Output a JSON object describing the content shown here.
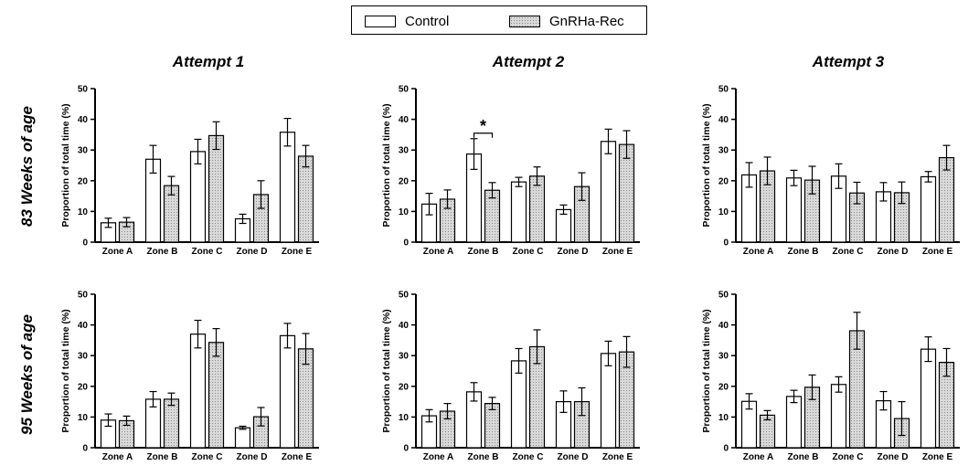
{
  "legend": {
    "control_label": "Control",
    "treated_label": "GnRHa-Rec"
  },
  "column_titles": [
    "Attempt 1",
    "Attempt 2",
    "Attempt 3"
  ],
  "row_titles": [
    "83 Weeks of age",
    "95 Weeks of age"
  ],
  "colors": {
    "control_fill": "#ffffff",
    "treated_fill": "#d9d9d9",
    "stroke": "#000000"
  },
  "chart_data": [
    {
      "type": "bar",
      "row": 0,
      "col": 0,
      "categories": [
        "Zone A",
        "Zone B",
        "Zone C",
        "Zone D",
        "Zone E"
      ],
      "ylabel": "Proportion of total time (%)",
      "ylim": [
        0,
        50
      ],
      "yticks": [
        0,
        10,
        20,
        30,
        40,
        50
      ],
      "series": [
        {
          "name": "Control",
          "values": [
            6.3,
            27,
            29.5,
            7.6,
            35.8
          ],
          "errors": [
            1.5,
            4.5,
            4,
            1.5,
            4.5
          ]
        },
        {
          "name": "GnRHa-Rec",
          "values": [
            6.5,
            18.4,
            34.7,
            15.5,
            28
          ],
          "errors": [
            1.5,
            3,
            4.5,
            4.5,
            3.5
          ]
        }
      ],
      "annotation": null
    },
    {
      "type": "bar",
      "row": 0,
      "col": 1,
      "categories": [
        "Zone A",
        "Zone B",
        "Zone C",
        "Zone D",
        "Zone E"
      ],
      "ylabel": "Proportion of total time (%)",
      "ylim": [
        0,
        50
      ],
      "yticks": [
        0,
        10,
        20,
        30,
        40,
        50
      ],
      "series": [
        {
          "name": "Control",
          "values": [
            12.4,
            28.7,
            19.6,
            10.6,
            32.8
          ],
          "errors": [
            3.5,
            5,
            1.5,
            1.5,
            4
          ]
        },
        {
          "name": "GnRHa-Rec",
          "values": [
            14,
            16.9,
            21.5,
            18.1,
            31.8
          ],
          "errors": [
            3,
            2.5,
            3,
            4.5,
            4.5
          ]
        }
      ],
      "annotation": {
        "text": "*",
        "category_index": 1
      }
    },
    {
      "type": "bar",
      "row": 0,
      "col": 2,
      "categories": [
        "Zone A",
        "Zone B",
        "Zone C",
        "Zone D",
        "Zone E"
      ],
      "ylabel": "Proportion of total time (%)",
      "ylim": [
        0,
        50
      ],
      "yticks": [
        0,
        10,
        20,
        30,
        40,
        50
      ],
      "series": [
        {
          "name": "Control",
          "values": [
            21.9,
            20.9,
            21.5,
            16.4,
            21.3
          ],
          "errors": [
            4,
            2.5,
            4,
            3,
            1.7
          ]
        },
        {
          "name": "GnRHa-Rec",
          "values": [
            23.2,
            20.2,
            16,
            16.1,
            27.5
          ],
          "errors": [
            4.5,
            4.5,
            3.5,
            3.5,
            4
          ]
        }
      ],
      "annotation": null
    },
    {
      "type": "bar",
      "row": 1,
      "col": 0,
      "categories": [
        "Zone A",
        "Zone B",
        "Zone C",
        "Zone D",
        "Zone E"
      ],
      "ylabel": "Proportion of total time (%)",
      "ylim": [
        0,
        50
      ],
      "yticks": [
        0,
        10,
        20,
        30,
        40,
        50
      ],
      "series": [
        {
          "name": "Control",
          "values": [
            9,
            15.8,
            37,
            6.5,
            36.5
          ],
          "errors": [
            2,
            2.5,
            4.5,
            0.5,
            4
          ]
        },
        {
          "name": "GnRHa-Rec",
          "values": [
            8.8,
            15.8,
            34.3,
            10.1,
            32.2
          ],
          "errors": [
            1.5,
            2,
            4.5,
            3,
            5
          ]
        }
      ],
      "annotation": null
    },
    {
      "type": "bar",
      "row": 1,
      "col": 1,
      "categories": [
        "Zone A",
        "Zone B",
        "Zone C",
        "Zone D",
        "Zone E"
      ],
      "ylabel": "Proportion of total time (%)",
      "ylim": [
        0,
        50
      ],
      "yticks": [
        0,
        10,
        20,
        30,
        40,
        50
      ],
      "series": [
        {
          "name": "Control",
          "values": [
            10.4,
            18.2,
            28.3,
            15,
            30.7
          ],
          "errors": [
            2,
            3,
            4,
            3.5,
            4
          ]
        },
        {
          "name": "GnRHa-Rec",
          "values": [
            11.9,
            14.4,
            32.9,
            15,
            31.2
          ],
          "errors": [
            2.5,
            2,
            5.5,
            4.5,
            5
          ]
        }
      ],
      "annotation": null
    },
    {
      "type": "bar",
      "row": 1,
      "col": 2,
      "categories": [
        "Zone A",
        "Zone B",
        "Zone C",
        "Zone D",
        "Zone E"
      ],
      "ylabel": "Proportion of total time (%)",
      "ylim": [
        0,
        50
      ],
      "yticks": [
        0,
        10,
        20,
        30,
        40,
        50
      ],
      "series": [
        {
          "name": "Control",
          "values": [
            15.1,
            16.7,
            20.6,
            15.3,
            32.1
          ],
          "errors": [
            2.5,
            2,
            2.5,
            3,
            4
          ]
        },
        {
          "name": "GnRHa-Rec",
          "values": [
            10.6,
            19.7,
            38.1,
            9.5,
            27.8
          ],
          "errors": [
            1.5,
            4,
            6,
            5.5,
            4.5
          ]
        }
      ],
      "annotation": null
    }
  ]
}
